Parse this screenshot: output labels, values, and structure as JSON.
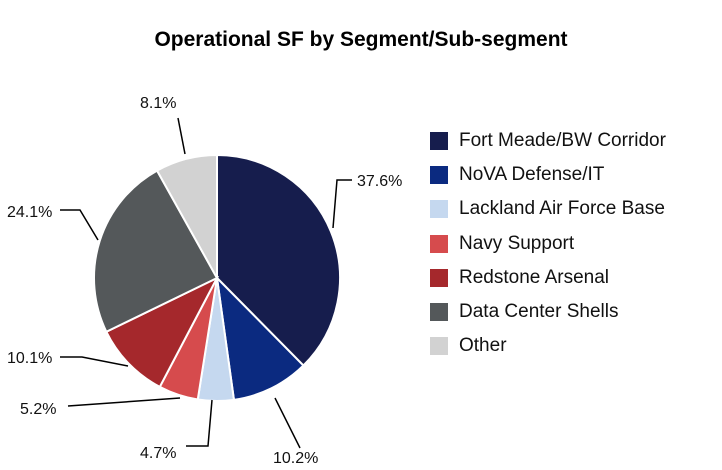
{
  "chart_data": {
    "type": "pie",
    "title": "Operational SF by Segment/Sub-segment",
    "legend_position": "right",
    "start_angle": "12 o'clock, clockwise",
    "slices": [
      {
        "label": "Fort Meade/BW Corridor",
        "value": 37.6,
        "display": "37.6%",
        "color": "#161d4d"
      },
      {
        "label": "NoVA Defense/IT",
        "value": 10.2,
        "display": "10.2%",
        "color": "#0b2a80"
      },
      {
        "label": "Lackland Air Force Base",
        "value": 4.7,
        "display": "4.7%",
        "color": "#c5d8ef"
      },
      {
        "label": "Navy Support",
        "value": 5.2,
        "display": "5.2%",
        "color": "#d64b4d"
      },
      {
        "label": "Redstone Arsenal",
        "value": 10.1,
        "display": "10.1%",
        "color": "#a5282c"
      },
      {
        "label": "Data Center Shells",
        "value": 24.1,
        "display": "24.1%",
        "color": "#54585a"
      },
      {
        "label": "Other",
        "value": 8.1,
        "display": "8.1%",
        "color": "#d2d2d2"
      }
    ]
  }
}
